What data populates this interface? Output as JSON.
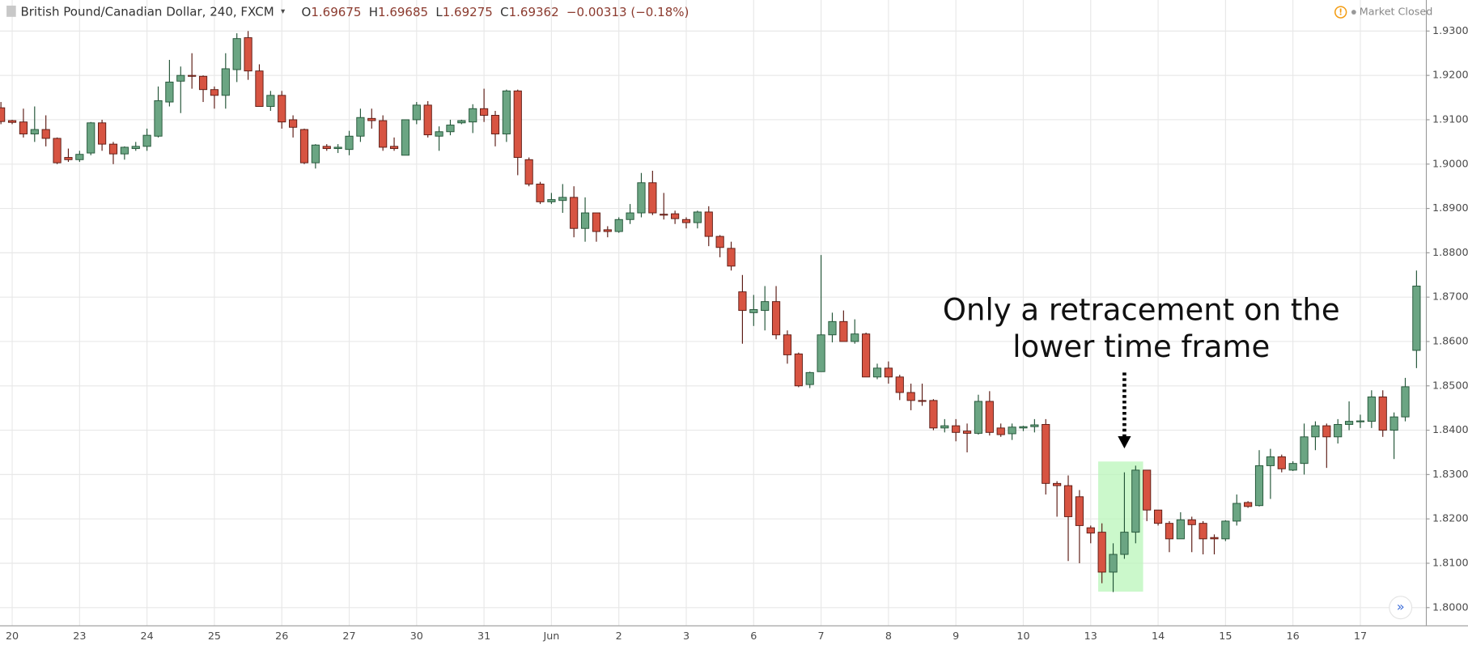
{
  "header": {
    "symbol": "British Pound/Canadian Dollar, 240, FXCM",
    "ohlc": [
      {
        "label": "O",
        "value": 1.69675
      },
      {
        "label": "H",
        "value": 1.69685
      },
      {
        "label": "L",
        "value": 1.69275
      },
      {
        "label": "C",
        "value": 1.69362
      }
    ],
    "change": "−0.00313 (−0.18%)",
    "status": "Market Closed"
  },
  "chart_data": {
    "type": "candlestick",
    "annotation": [
      "Only a retracement on the",
      "lower time frame"
    ],
    "up_color": "#6ba583",
    "down_color": "#d75442",
    "up_border": "#225437",
    "down_border": "#5b1a13",
    "grid": true,
    "categories": [
      null,
      "20",
      null,
      null,
      null,
      null,
      null,
      "23",
      null,
      null,
      null,
      null,
      null,
      "24",
      null,
      null,
      null,
      null,
      null,
      "25",
      null,
      null,
      null,
      null,
      null,
      "26",
      null,
      null,
      null,
      null,
      null,
      "27",
      null,
      null,
      null,
      null,
      null,
      "30",
      null,
      null,
      null,
      null,
      null,
      "31",
      null,
      null,
      null,
      null,
      null,
      "Jun",
      null,
      null,
      null,
      null,
      null,
      "2",
      null,
      null,
      null,
      null,
      null,
      "3",
      null,
      null,
      null,
      null,
      null,
      "6",
      null,
      null,
      null,
      null,
      null,
      "7",
      null,
      null,
      null,
      null,
      null,
      "8",
      null,
      null,
      null,
      null,
      null,
      "9",
      null,
      null,
      null,
      null,
      null,
      "10",
      null,
      null,
      null,
      null,
      null,
      "13",
      null,
      null,
      null,
      null,
      null,
      "14",
      null,
      null,
      null,
      null,
      null,
      "15",
      null,
      null,
      null,
      null,
      null,
      "16",
      null,
      null,
      null,
      null,
      null,
      "17",
      null,
      null,
      null,
      null,
      null
    ],
    "open": [
      1.9127,
      1.9098,
      1.9095,
      1.9068,
      1.9078,
      1.9058,
      1.9015,
      1.901,
      1.9025,
      1.9093,
      1.9045,
      1.9023,
      1.9035,
      1.904,
      1.9063,
      1.914,
      1.9187,
      1.92,
      1.9198,
      1.9168,
      1.9155,
      1.9213,
      1.9285,
      1.921,
      1.913,
      1.9155,
      1.91,
      1.9078,
      1.9003,
      1.904,
      1.9035,
      1.9033,
      1.9063,
      1.9103,
      1.9098,
      1.904,
      1.902,
      1.91,
      1.9133,
      1.9063,
      1.9073,
      1.9093,
      1.9095,
      1.9125,
      1.911,
      1.9068,
      1.9165,
      1.901,
      1.8955,
      1.8915,
      1.8918,
      1.8925,
      1.8855,
      1.889,
      1.8852,
      1.8848,
      1.8875,
      1.889,
      1.8958,
      1.8887,
      1.8888,
      1.8875,
      1.8868,
      1.8892,
      1.8837,
      1.881,
      1.8712,
      1.8665,
      1.867,
      1.869,
      1.8615,
      1.8572,
      1.8503,
      1.8532,
      1.8615,
      1.8645,
      1.86,
      1.8617,
      1.852,
      1.854,
      1.852,
      1.8485,
      1.8467,
      1.8467,
      1.8405,
      1.841,
      1.8398,
      1.8393,
      1.8465,
      1.8405,
      1.8392,
      1.8405,
      1.8408,
      1.8413,
      1.828,
      1.8275,
      1.825,
      1.818,
      1.817,
      1.808,
      1.812,
      1.817,
      1.831,
      1.822,
      1.819,
      1.8155,
      1.8198,
      1.819,
      1.8158,
      1.8155,
      1.8195,
      1.8237,
      1.823,
      1.832,
      1.834,
      1.831,
      1.8325,
      1.8385,
      1.841,
      1.8385,
      1.8413,
      1.842,
      1.842,
      1.8475,
      1.84,
      1.843,
      1.858
    ],
    "high": [
      1.914,
      1.91,
      1.9125,
      1.913,
      1.911,
      1.906,
      1.9035,
      1.903,
      1.9095,
      1.91,
      1.905,
      1.904,
      1.905,
      1.908,
      1.9175,
      1.9235,
      1.922,
      1.925,
      1.92,
      1.9175,
      1.925,
      1.9295,
      1.93,
      1.9225,
      1.9165,
      1.9165,
      1.911,
      1.908,
      1.9045,
      1.9045,
      1.9045,
      1.9075,
      1.9125,
      1.9125,
      1.911,
      1.906,
      1.91,
      1.914,
      1.9142,
      1.9085,
      1.91,
      1.91,
      1.9135,
      1.917,
      1.912,
      1.9168,
      1.9168,
      1.9015,
      1.896,
      1.8935,
      1.8955,
      1.895,
      1.8925,
      1.889,
      1.886,
      1.888,
      1.891,
      1.898,
      1.8985,
      1.8935,
      1.8895,
      1.888,
      1.8895,
      1.8905,
      1.884,
      1.8825,
      1.875,
      1.8705,
      1.8725,
      1.8725,
      1.8625,
      1.8575,
      1.8532,
      1.8795,
      1.8665,
      1.867,
      1.865,
      1.862,
      1.855,
      1.8555,
      1.8525,
      1.8505,
      1.8505,
      1.847,
      1.8425,
      1.8425,
      1.8415,
      1.848,
      1.8488,
      1.8415,
      1.8415,
      1.841,
      1.8425,
      1.8425,
      1.8285,
      1.8298,
      1.8265,
      1.8185,
      1.819,
      1.8145,
      1.8305,
      1.832,
      1.831,
      1.822,
      1.8195,
      1.8215,
      1.8205,
      1.8195,
      1.8165,
      1.8197,
      1.8255,
      1.824,
      1.8355,
      1.8358,
      1.8345,
      1.833,
      1.8415,
      1.842,
      1.8415,
      1.8425,
      1.8465,
      1.8435,
      1.849,
      1.849,
      1.844,
      1.8518,
      1.876
    ],
    "low": [
      1.909,
      1.909,
      1.906,
      1.905,
      1.904,
      1.9,
      1.9005,
      1.9005,
      1.902,
      1.903,
      1.9,
      1.901,
      1.903,
      1.903,
      1.906,
      1.913,
      1.9115,
      1.917,
      1.914,
      1.9125,
      1.9125,
      1.9185,
      1.919,
      1.913,
      1.912,
      1.908,
      1.906,
      1.9,
      1.899,
      1.903,
      1.9025,
      1.902,
      1.905,
      1.908,
      1.903,
      1.903,
      1.902,
      1.909,
      1.906,
      1.903,
      1.9065,
      1.909,
      1.907,
      1.9095,
      1.904,
      1.905,
      1.8975,
      1.895,
      1.891,
      1.891,
      1.889,
      1.8835,
      1.8825,
      1.8825,
      1.8835,
      1.8845,
      1.8865,
      1.888,
      1.8885,
      1.8875,
      1.8865,
      1.8855,
      1.8855,
      1.8815,
      1.879,
      1.876,
      1.8595,
      1.8635,
      1.8625,
      1.8605,
      1.855,
      1.8497,
      1.8495,
      1.8532,
      1.8598,
      1.86,
      1.8595,
      1.852,
      1.8515,
      1.8505,
      1.8468,
      1.8445,
      1.8455,
      1.84,
      1.8395,
      1.8375,
      1.835,
      1.839,
      1.8388,
      1.8385,
      1.8378,
      1.8398,
      1.8395,
      1.8255,
      1.8205,
      1.8105,
      1.81,
      1.8145,
      1.8055,
      1.8035,
      1.811,
      1.8145,
      1.8195,
      1.8185,
      1.8125,
      1.8155,
      1.8125,
      1.812,
      1.812,
      1.815,
      1.8185,
      1.8225,
      1.8228,
      1.8245,
      1.8305,
      1.8308,
      1.83,
      1.8355,
      1.8315,
      1.837,
      1.84,
      1.8405,
      1.8405,
      1.8385,
      1.8335,
      1.842,
      1.854
    ],
    "close": [
      1.9096,
      1.9094,
      1.9068,
      1.9078,
      1.9058,
      1.9003,
      1.901,
      1.9022,
      1.9093,
      1.9045,
      1.9023,
      1.9038,
      1.904,
      1.9065,
      1.9143,
      1.9185,
      1.92,
      1.9198,
      1.9168,
      1.9155,
      1.9215,
      1.9283,
      1.921,
      1.913,
      1.9155,
      1.9095,
      1.9083,
      1.9003,
      1.9043,
      1.9035,
      1.9038,
      1.9063,
      1.9105,
      1.9098,
      1.9038,
      1.9035,
      1.91,
      1.9133,
      1.9066,
      1.9073,
      1.9088,
      1.9098,
      1.9125,
      1.911,
      1.9068,
      1.9165,
      1.9015,
      1.8955,
      1.8915,
      1.892,
      1.8925,
      1.8855,
      1.889,
      1.8848,
      1.8848,
      1.8875,
      1.889,
      1.8958,
      1.889,
      1.8885,
      1.8877,
      1.8868,
      1.8892,
      1.8837,
      1.8812,
      1.877,
      1.867,
      1.8672,
      1.869,
      1.8615,
      1.857,
      1.85,
      1.853,
      1.8615,
      1.8645,
      1.86,
      1.8617,
      1.852,
      1.854,
      1.852,
      1.8485,
      1.8467,
      1.8465,
      1.8405,
      1.841,
      1.8395,
      1.8393,
      1.8465,
      1.8395,
      1.839,
      1.8407,
      1.8408,
      1.8412,
      1.828,
      1.8275,
      1.8205,
      1.8185,
      1.8168,
      1.808,
      1.812,
      1.817,
      1.831,
      1.822,
      1.819,
      1.8155,
      1.8198,
      1.8187,
      1.8155,
      1.8155,
      1.8195,
      1.8235,
      1.8228,
      1.832,
      1.834,
      1.8313,
      1.8325,
      1.8385,
      1.841,
      1.8385,
      1.8413,
      1.842,
      1.8421,
      1.8475,
      1.84,
      1.843,
      1.8498,
      1.8725
    ],
    "ylim": [
      1.796,
      1.937
    ],
    "yticks": [
      {
        "value": 1.8,
        "label": "1.80000"
      },
      {
        "value": 1.81,
        "label": "1.81000"
      },
      {
        "value": 1.82,
        "label": "1.82000"
      },
      {
        "value": 1.83,
        "label": "1.83000"
      },
      {
        "value": 1.84,
        "label": "1.84000"
      },
      {
        "value": 1.85,
        "label": "1.85000"
      },
      {
        "value": 1.86,
        "label": "1.86000"
      },
      {
        "value": 1.87,
        "label": "1.87000"
      },
      {
        "value": 1.88,
        "label": "1.88000"
      },
      {
        "value": 1.89,
        "label": "1.89000"
      },
      {
        "value": 1.9,
        "label": "1.90000"
      },
      {
        "value": 1.91,
        "label": "1.91000"
      },
      {
        "value": 1.92,
        "label": "1.92000"
      },
      {
        "value": 1.93,
        "label": "1.93000"
      }
    ]
  }
}
